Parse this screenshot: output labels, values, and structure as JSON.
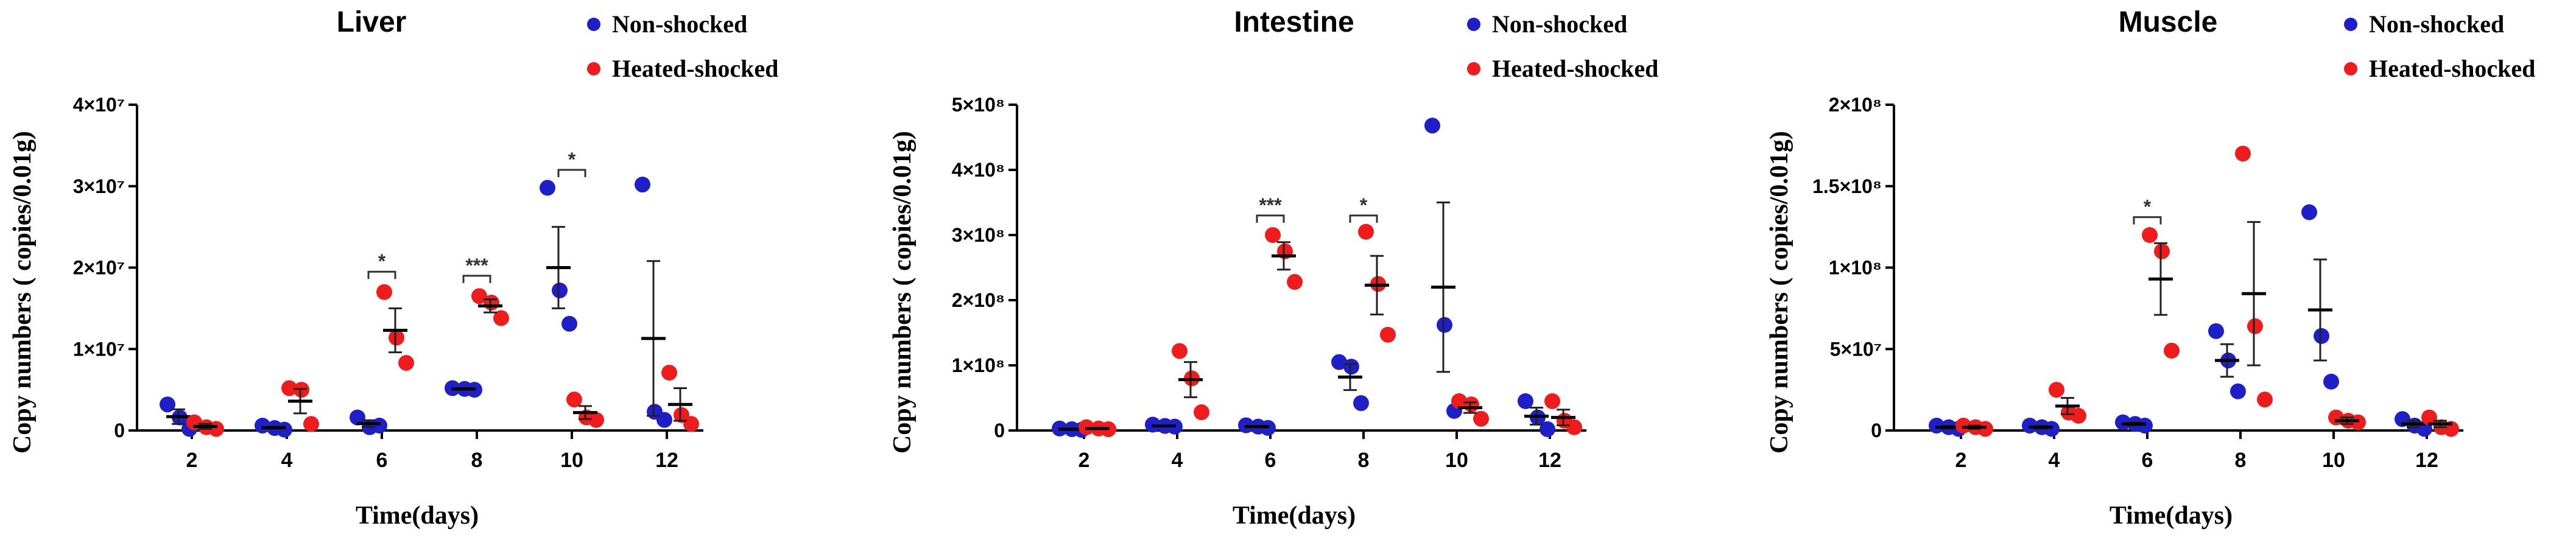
{
  "colors": {
    "non_shocked": "#1f1fc8",
    "heated_shocked": "#ee1c1c",
    "axis": "#000000"
  },
  "legend": {
    "non_shocked": "Non-shocked",
    "heated_shocked": "Heated-shocked"
  },
  "chart_data": [
    {
      "type": "scatter",
      "title": "Liver",
      "xlabel": "Time(days)",
      "ylabel": "Copy numbers ( copies/0.01g)",
      "categories": [
        "2",
        "4",
        "6",
        "8",
        "10",
        "12"
      ],
      "ylim": [
        0,
        40000000
      ],
      "yticks": [
        {
          "value": 0,
          "label": "0"
        },
        {
          "value": 10000000,
          "label": "1×10⁷"
        },
        {
          "value": 20000000,
          "label": "2×10⁷"
        },
        {
          "value": 30000000,
          "label": "3×10⁷"
        },
        {
          "value": 40000000,
          "label": "4×10⁷"
        }
      ],
      "series": [
        {
          "name": "Non-shocked",
          "points": [
            [
              2,
              3200000,
              1600000,
              200000
            ],
            [
              4,
              600000,
              300000,
              100000
            ],
            [
              6,
              1600000,
              400000,
              600000
            ],
            [
              8,
              5200000,
              5100000,
              5000000
            ],
            [
              10,
              29800000,
              17200000,
              13100000
            ],
            [
              12,
              30200000,
              2300000,
              1300000
            ]
          ],
          "mean": [
            1700000,
            350000,
            850000,
            5100000,
            20000000,
            11300000
          ],
          "sem": [
            900000,
            150000,
            400000,
            100000,
            5000000,
            9500000
          ]
        },
        {
          "name": "Heated-shocked",
          "points": [
            [
              2,
              1000000,
              400000,
              200000
            ],
            [
              4,
              5200000,
              5000000,
              800000
            ],
            [
              6,
              17000000,
              11400000,
              8300000
            ],
            [
              8,
              16500000,
              15700000,
              13800000
            ],
            [
              10,
              3800000,
              1600000,
              1300000
            ],
            [
              12,
              7100000,
              1900000,
              800000
            ]
          ],
          "mean": [
            500000,
            3600000,
            12300000,
            15300000,
            2200000,
            3200000
          ],
          "sem": [
            300000,
            1500000,
            2700000,
            800000,
            800000,
            2000000
          ]
        }
      ],
      "significance": [
        {
          "category": "6",
          "label": "*",
          "y": 19500000
        },
        {
          "category": "8",
          "label": "***",
          "y": 19000000
        },
        {
          "category": "10",
          "label": "*",
          "y": 32000000
        }
      ]
    },
    {
      "type": "scatter",
      "title": "Intestine",
      "xlabel": "Time(days)",
      "ylabel": "Copy numbers ( copies/0.01g)",
      "categories": [
        "2",
        "4",
        "6",
        "8",
        "10",
        "12"
      ],
      "ylim": [
        0,
        500000000
      ],
      "yticks": [
        {
          "value": 0,
          "label": "0"
        },
        {
          "value": 100000000,
          "label": "1×10⁸"
        },
        {
          "value": 200000000,
          "label": "2×10⁸"
        },
        {
          "value": 300000000,
          "label": "3×10⁸"
        },
        {
          "value": 400000000,
          "label": "4×10⁸"
        },
        {
          "value": 500000000,
          "label": "5×10⁸"
        }
      ],
      "series": [
        {
          "name": "Non-shocked",
          "points": [
            [
              2,
              3000000,
              2000000,
              1000000
            ],
            [
              4,
              9000000,
              7000000,
              6000000
            ],
            [
              6,
              8000000,
              6000000,
              4000000
            ],
            [
              8,
              105000000,
              98000000,
              42000000
            ],
            [
              10,
              468000000,
              162000000,
              30000000
            ],
            [
              12,
              45000000,
              20000000,
              2000000
            ]
          ],
          "mean": [
            2000000,
            7000000,
            6000000,
            82000000,
            220000000,
            22000000
          ],
          "sem": [
            1000000,
            1000000,
            1000000,
            20000000,
            130000000,
            13000000
          ]
        },
        {
          "name": "Heated-shocked",
          "points": [
            [
              2,
              5000000,
              3000000,
              2000000
            ],
            [
              4,
              122000000,
              80000000,
              28000000
            ],
            [
              6,
              300000000,
              275000000,
              228000000
            ],
            [
              8,
              305000000,
              225000000,
              147000000
            ],
            [
              10,
              45000000,
              40000000,
              18000000
            ],
            [
              12,
              45000000,
              15000000,
              5000000
            ]
          ],
          "mean": [
            3000000,
            78000000,
            268000000,
            223000000,
            35000000,
            20000000
          ],
          "sem": [
            1000000,
            27000000,
            21000000,
            45000000,
            8000000,
            12000000
          ]
        }
      ],
      "significance": [
        {
          "category": "6",
          "label": "***",
          "y": 330000000
        },
        {
          "category": "8",
          "label": "*",
          "y": 330000000
        }
      ]
    },
    {
      "type": "scatter",
      "title": "Muscle",
      "xlabel": "Time(days)",
      "ylabel": "Copy numbers ( copies/0.01g)",
      "categories": [
        "2",
        "4",
        "6",
        "8",
        "10",
        "12"
      ],
      "ylim": [
        0,
        200000000
      ],
      "yticks": [
        {
          "value": 0,
          "label": "0"
        },
        {
          "value": 50000000,
          "label": "5×10⁷"
        },
        {
          "value": 100000000,
          "label": "1×10⁸"
        },
        {
          "value": 150000000,
          "label": "1.5×10⁸"
        },
        {
          "value": 200000000,
          "label": "2×10⁸"
        }
      ],
      "series": [
        {
          "name": "Non-shocked",
          "points": [
            [
              2,
              3000000,
              2000000,
              1000000
            ],
            [
              4,
              3000000,
              2000000,
              1000000
            ],
            [
              6,
              5000000,
              4000000,
              3000000
            ],
            [
              8,
              61000000,
              43000000,
              24000000
            ],
            [
              10,
              134000000,
              58000000,
              30000000
            ],
            [
              12,
              7000000,
              3000000,
              1000000
            ]
          ],
          "mean": [
            2000000,
            2000000,
            4000000,
            43000000,
            74000000,
            4000000
          ],
          "sem": [
            1000000,
            1000000,
            1000000,
            10000000,
            31000000,
            2000000
          ]
        },
        {
          "name": "Heated-shocked",
          "points": [
            [
              2,
              3000000,
              2000000,
              1000000
            ],
            [
              4,
              25000000,
              11000000,
              9000000
            ],
            [
              6,
              120000000,
              110000000,
              49000000
            ],
            [
              8,
              170000000,
              64000000,
              19000000
            ],
            [
              10,
              8000000,
              6000000,
              5000000
            ],
            [
              12,
              8000000,
              2000000,
              1000000
            ]
          ],
          "mean": [
            2000000,
            15000000,
            93000000,
            84000000,
            6000000,
            4000000
          ],
          "sem": [
            1000000,
            5000000,
            22000000,
            44000000,
            2000000,
            2000000
          ]
        }
      ],
      "significance": [
        {
          "category": "6",
          "label": "*",
          "y": 131000000
        }
      ]
    }
  ]
}
